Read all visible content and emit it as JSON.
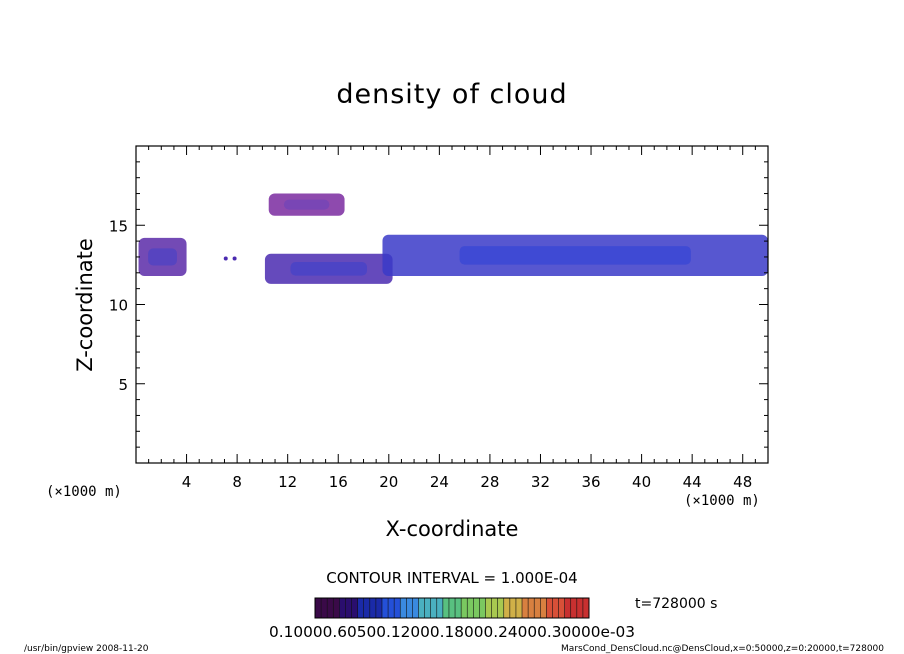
{
  "chart_data": {
    "type": "heatmap",
    "title": "density of cloud",
    "xlabel": "X-coordinate",
    "ylabel": "Z-coordinate",
    "x_unit_left": "(×1000 m)",
    "x_unit_right": "(×1000 m)",
    "xlim": [
      0,
      50
    ],
    "ylim": [
      0,
      20
    ],
    "xticks": [
      4,
      8,
      12,
      16,
      20,
      24,
      28,
      32,
      36,
      40,
      44,
      48
    ],
    "yticks": [
      5,
      10,
      15
    ],
    "grid": false,
    "contour_interval_text": "CONTOUR INTERVAL = 1.000E-04",
    "time_text": "t=728000 s",
    "colorbar_labels_text": "0.10000.60500.12000.18000.24000.30000e-03",
    "colorbar_colors": [
      "#3a0a48",
      "#2a0e6e",
      "#1a2aa8",
      "#2450d8",
      "#3a8ae0",
      "#4ab0c0",
      "#58c080",
      "#7ac860",
      "#a8c850",
      "#d0b048",
      "#d88040",
      "#d85038",
      "#c83030"
    ],
    "regions": [
      {
        "name": "left-band",
        "x": [
          0.2,
          4.0
        ],
        "z": [
          11.8,
          14.2
        ],
        "level": 0.55,
        "color": "#5a2aa8"
      },
      {
        "name": "upper-patch",
        "x": [
          10.5,
          16.5
        ],
        "z": [
          15.6,
          17.0
        ],
        "level": 0.3,
        "color": "#7a2aa0"
      },
      {
        "name": "band-12-20",
        "x": [
          10.2,
          20.3
        ],
        "z": [
          11.3,
          13.2
        ],
        "level": 0.55,
        "color": "#4a2ab0"
      },
      {
        "name": "band-20-50",
        "x": [
          19.5,
          50.0
        ],
        "z": [
          11.8,
          14.4
        ],
        "level": 0.7,
        "color": "#3a3ac8"
      }
    ],
    "specks": [
      {
        "x": 7.1,
        "z": 12.9
      },
      {
        "x": 7.8,
        "z": 12.9
      }
    ]
  },
  "footer": {
    "left": "/usr/bin/gpview  2008-11-20",
    "right": "MarsCond_DensCloud.nc@DensCloud,x=0:50000,z=0:20000,t=728000"
  },
  "colors": {
    "axis": "#000000",
    "background": "#ffffff"
  }
}
